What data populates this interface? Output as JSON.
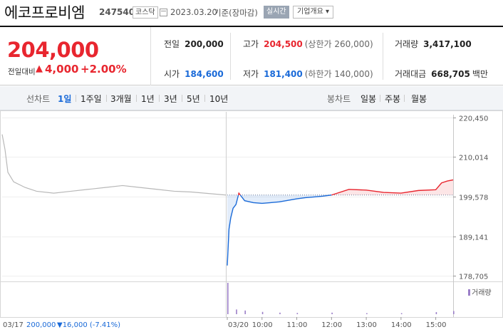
{
  "header": {
    "name": "에코프로비엠",
    "code": "247540",
    "market": "코스닥",
    "date": "2023.03.20",
    "basis": "기준(장마감)",
    "live_button": "실시간",
    "info_button": "기업개요 ▾"
  },
  "quote": {
    "price": "204,000",
    "change_label": "전일대비",
    "change_arrow": "▲",
    "change_value": "4,000",
    "change_pct": "+2.00%",
    "prev_close_label": "전일",
    "prev_close": "200,000",
    "high_label": "고가",
    "high": "204,500",
    "upper_limit": "(상한가 260,000)",
    "volume_label": "거래량",
    "volume": "3,417,100",
    "open_label": "시가",
    "open": "184,600",
    "low_label": "저가",
    "low": "181,400",
    "lower_limit": "(하한가 140,000)",
    "amount_label": "거래대금",
    "amount": "668,705",
    "amount_unit": "백만"
  },
  "tabs": {
    "line_label": "선차트",
    "line_periods": [
      "1일",
      "1주일",
      "3개월",
      "1년",
      "3년",
      "5년",
      "10년"
    ],
    "candle_label": "봉차트",
    "candle_periods": [
      "일봉",
      "주봉",
      "월봉"
    ]
  },
  "chart_footer": {
    "prev_date": "03/17",
    "prev_price": "200,000",
    "prev_change": "▼16,000 (-7.41%)",
    "volume_legend": "거래량"
  },
  "colors": {
    "up": "#e8262f",
    "down": "#1a6ad8",
    "prev_day_line": "#b8b8b8",
    "volume": "#9b7fc8"
  },
  "chart_data": {
    "type": "line",
    "title": "",
    "xlabel": "",
    "ylabel": "",
    "y_ticks": [
      "220,450",
      "210,014",
      "199,578",
      "189,141",
      "178,705"
    ],
    "ylim": [
      178705,
      220450
    ],
    "baseline": 200000,
    "x_ticks": [
      "03/20",
      "10:00",
      "11:00",
      "12:00",
      "13:00",
      "14:00",
      "15:00"
    ],
    "series": [
      {
        "x": [
          "03/17 09:00",
          "03/17 09:05",
          "03/17 09:10",
          "03/17 09:20",
          "03/17 09:40",
          "03/17 10:00",
          "03/17 10:30",
          "03/17 11:00",
          "03/17 11:30",
          "03/17 12:00",
          "03/17 12:30",
          "03/17 13:00",
          "03/17 13:30",
          "03/17 14:00",
          "03/17 14:30",
          "03/17 15:00",
          "03/17 15:30"
        ],
        "values": [
          216000,
          212000,
          206000,
          203500,
          202000,
          201000,
          200500,
          201000,
          201500,
          202000,
          202500,
          202000,
          201500,
          201000,
          200800,
          200400,
          200000
        ]
      },
      {
        "x": [
          "09:00",
          "09:03",
          "09:06",
          "09:10",
          "09:15",
          "09:20",
          "09:30",
          "09:45",
          "10:00",
          "10:15",
          "10:30",
          "10:45",
          "11:00",
          "11:15",
          "11:30",
          "11:45",
          "12:00",
          "12:30",
          "13:00",
          "13:30",
          "14:00",
          "14:30",
          "15:00",
          "15:10",
          "15:20",
          "15:30"
        ],
        "values": [
          181400,
          191000,
          194000,
          196500,
          197500,
          200500,
          198500,
          198000,
          197800,
          198000,
          198200,
          198600,
          199000,
          199300,
          199500,
          199700,
          200000,
          201500,
          201300,
          200700,
          200500,
          201200,
          201400,
          203200,
          203700,
          204000
        ]
      }
    ],
    "volume": {
      "x": [
        "09:00",
        "09:15",
        "09:30",
        "10:00",
        "10:30",
        "11:00",
        "12:00",
        "13:00",
        "14:00",
        "15:00",
        "15:30"
      ],
      "values": [
        3.0,
        0.45,
        0.35,
        0.22,
        0.15,
        0.12,
        0.15,
        0.1,
        0.1,
        0.2,
        0.3
      ]
    }
  }
}
